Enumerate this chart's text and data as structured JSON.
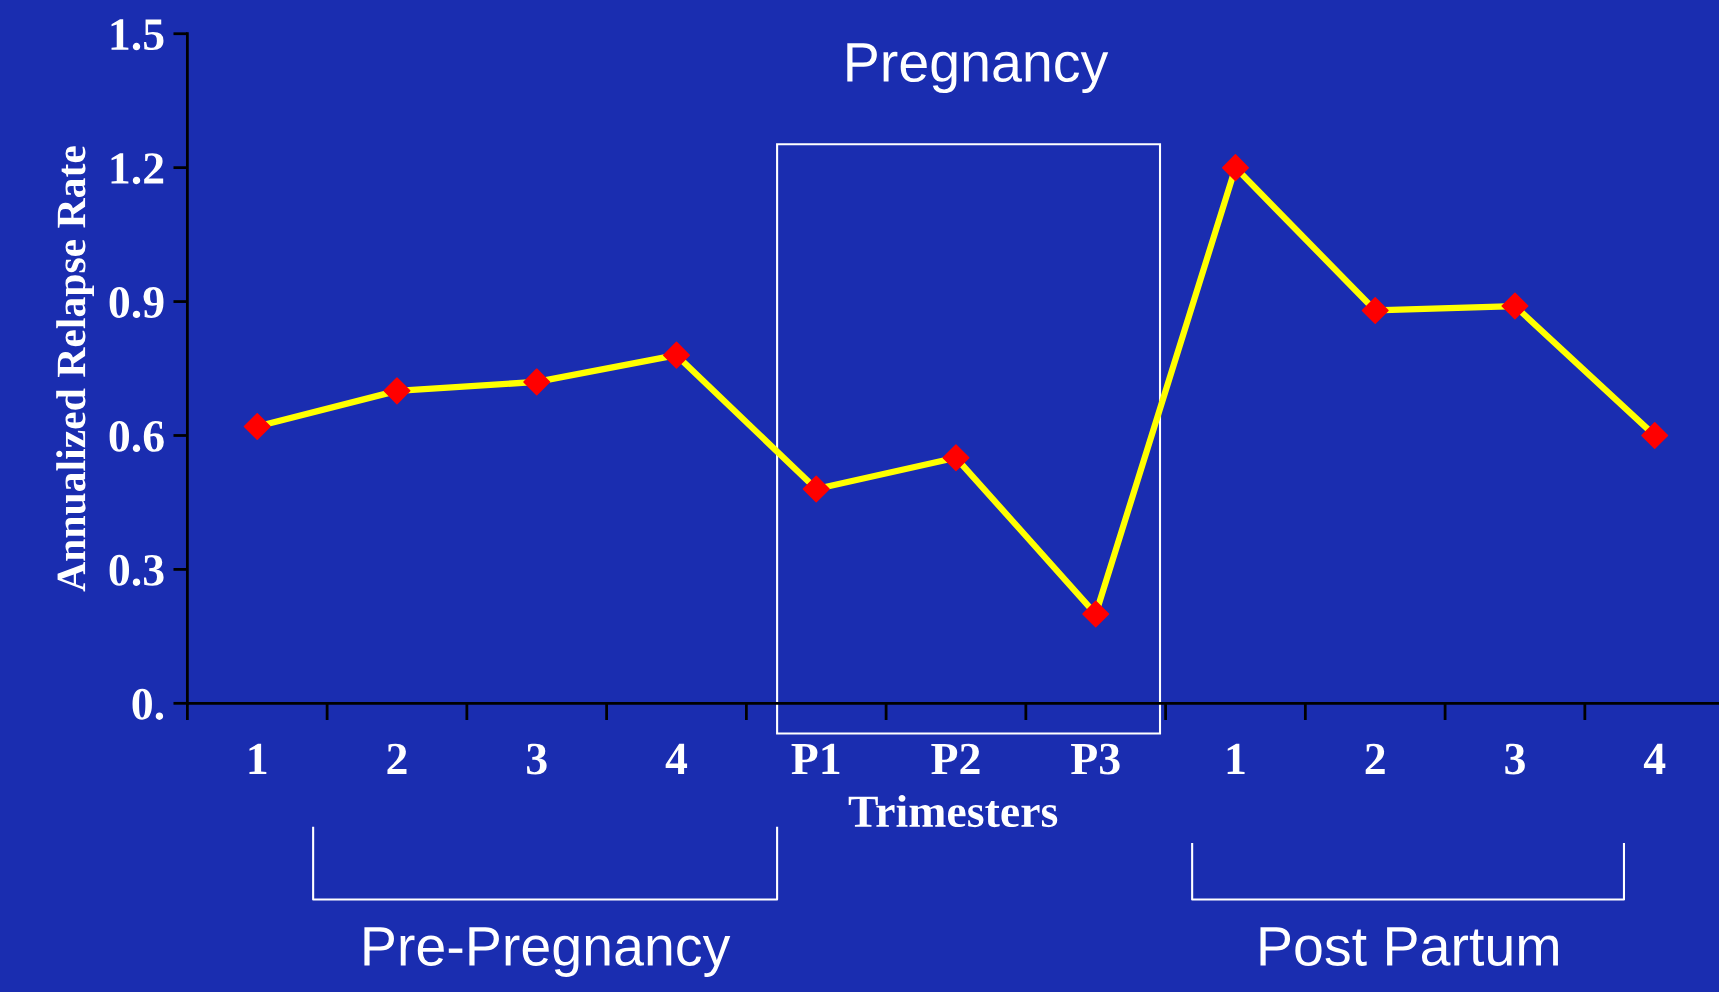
{
  "chart_data": {
    "type": "line",
    "xlabel": "Trimesters",
    "ylabel": "Annualized Relapse Rate",
    "categories": [
      "1",
      "2",
      "3",
      "4",
      "P1",
      "P2",
      "P3",
      "1",
      "2",
      "3",
      "4"
    ],
    "series": [
      {
        "color": "#ffff00",
        "colors": [
          "#ff0000",
          "#ff0000",
          "#ff0000",
          "#ff0000",
          "#ff0000",
          "#ff0000",
          "#ff0000",
          "#ff0000",
          "#ff0000",
          "#ff0000",
          "#ff0000"
        ],
        "values": [
          0.62,
          0.7,
          0.72,
          0.78,
          0.48,
          0.55,
          0.2,
          1.2,
          0.88,
          0.89,
          0.6
        ]
      }
    ],
    "marker": "diamond",
    "line_style": "solid",
    "ylim": [
      0,
      1.5
    ],
    "yticks": [
      {
        "value": 0,
        "label": "0."
      },
      0.3,
      0.6,
      0.9,
      1.2,
      1.5
    ],
    "grid": false,
    "legend": false,
    "annotations": [
      "Pregnancy",
      "Pre-Pregnancy",
      "Post Partum"
    ]
  }
}
